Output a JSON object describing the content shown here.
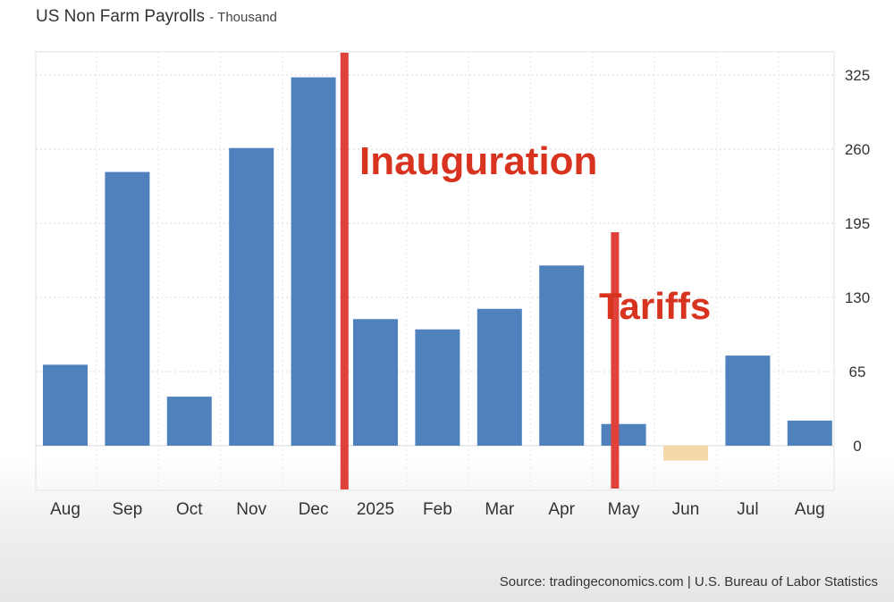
{
  "header": {
    "title": "US Non Farm Payrolls",
    "unit": "- Thousand"
  },
  "footer": {
    "source": "Source: tradingeconomics.com | U.S. Bureau of Labor Statistics"
  },
  "colors": {
    "bar": "#4f81bd",
    "bar_negative": "#f5d9a8",
    "marker": "#e0413a",
    "annotation_text": "#d8331f",
    "grid": "#d9d9d9",
    "axis_text": "#333333"
  },
  "chart_data": {
    "type": "bar",
    "title": "US Non Farm Payrolls",
    "ylabel": "Thousand",
    "xlabel": "",
    "categories": [
      "Aug",
      "Sep",
      "Oct",
      "Nov",
      "Dec",
      "2025",
      "Feb",
      "Mar",
      "Apr",
      "May",
      "Jun",
      "Jul",
      "Aug"
    ],
    "values": [
      71,
      240,
      43,
      261,
      323,
      111,
      102,
      120,
      158,
      19,
      -13,
      79,
      22
    ],
    "yticks": [
      0,
      65,
      130,
      195,
      260,
      325
    ],
    "ylim": [
      -40,
      345
    ],
    "grid": true,
    "y_axis_position": "right",
    "annotations": [
      {
        "label": "Inauguration",
        "after_category_index": 4
      },
      {
        "label": "Tariffs",
        "after_category_index": 8
      }
    ]
  }
}
